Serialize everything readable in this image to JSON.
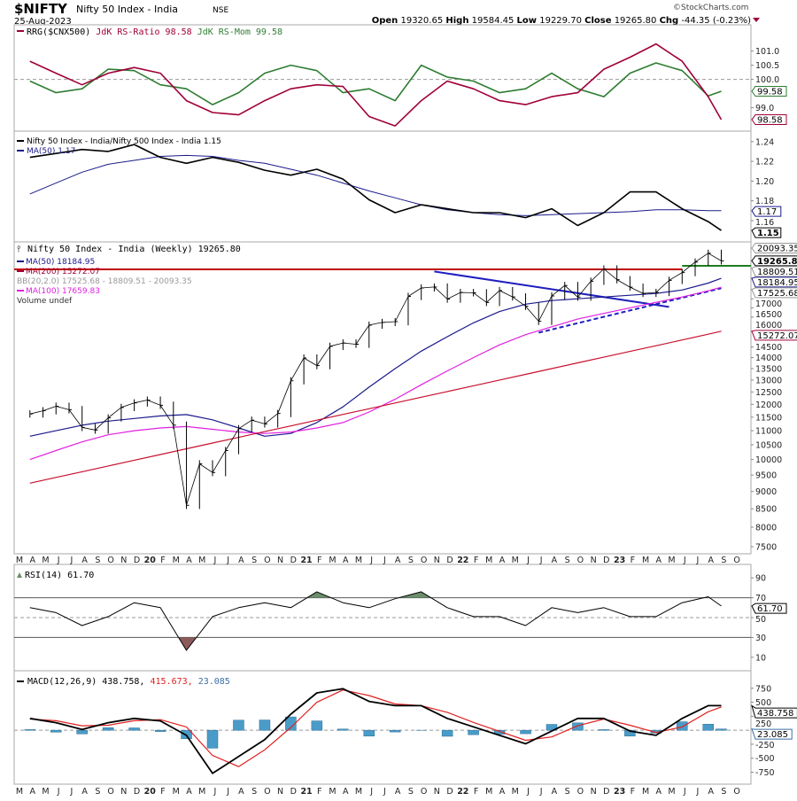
{
  "header": {
    "symbol": "$NIFTY",
    "name": "Nifty 50 Index - India",
    "exchange": "NSE",
    "date": "25-Aug-2023",
    "brand": "©StockCharts.com",
    "open_label": "Open",
    "open": "19320.65",
    "high_label": "High",
    "high": "19584.45",
    "low_label": "Low",
    "low": "19229.70",
    "close_label": "Close",
    "close": "19265.80",
    "chg_label": "Chg",
    "chg": "-44.35 (-0.23%)",
    "chg_icon": "triangle-down-icon",
    "down_color": "#a0003a"
  },
  "chart_data": [
    {
      "panel": "rrg",
      "type": "line",
      "legend": {
        "a": "RRG($CNX500)",
        "b": "JdK RS-Ratio 98.58",
        "c": "JdK RS-Mom 99.58"
      },
      "ylim": [
        98.3,
        101.8
      ],
      "yticks": [
        "101.0",
        "100.5",
        "100.0",
        "99.0"
      ],
      "ytick_values": [
        101.0,
        100.5,
        100.0,
        99.0
      ],
      "reference_line": 100.0,
      "tags": [
        {
          "label": "99.58",
          "value": 99.58,
          "color": "#2e7d32"
        },
        {
          "label": "98.58",
          "value": 98.58,
          "color": "#a0003a"
        }
      ],
      "dates": [
        "2019-03",
        "2019-05",
        "2019-07",
        "2019-09",
        "2019-11",
        "2020-01",
        "2020-03",
        "2020-05",
        "2020-07",
        "2020-09",
        "2020-11",
        "2021-01",
        "2021-03",
        "2021-05",
        "2021-07",
        "2021-09",
        "2021-11",
        "2022-01",
        "2022-03",
        "2022-05",
        "2022-07",
        "2022-09",
        "2022-11",
        "2023-01",
        "2023-03",
        "2023-05",
        "2023-07",
        "2023-08"
      ],
      "series": [
        {
          "name": "JdK RS-Ratio",
          "color": "#a0003a",
          "values": [
            100.64,
            100.22,
            99.81,
            100.22,
            100.42,
            100.22,
            99.25,
            98.83,
            98.75,
            99.25,
            99.67,
            99.81,
            99.75,
            98.69,
            98.36,
            99.25,
            99.94,
            99.67,
            99.25,
            99.11,
            99.39,
            99.53,
            100.36,
            100.78,
            101.25,
            100.64,
            99.39,
            98.58
          ]
        },
        {
          "name": "JdK RS-Mom",
          "color": "#2e7d32",
          "values": [
            99.94,
            99.53,
            99.67,
            100.36,
            100.31,
            99.81,
            99.67,
            99.11,
            99.53,
            100.22,
            100.5,
            100.31,
            99.53,
            99.67,
            99.25,
            100.5,
            100.08,
            99.94,
            99.53,
            99.67,
            100.22,
            99.67,
            99.39,
            100.22,
            100.58,
            100.31,
            99.42,
            99.58
          ]
        }
      ]
    },
    {
      "panel": "ratio",
      "type": "line",
      "legend": {
        "a": "Nifty 50 Index - India/Nifty 500 Index - India 1.15",
        "b": "MA(50) 1.17"
      },
      "ylim": [
        1.142,
        1.247
      ],
      "yticks": [
        "1.24",
        "1.22",
        "1.20",
        "1.18",
        "1.16"
      ],
      "ytick_values": [
        1.24,
        1.22,
        1.2,
        1.18,
        1.16
      ],
      "tags": [
        {
          "label": "1.17",
          "value": 1.17,
          "color": "#1a1a8c"
        },
        {
          "label": "1.15",
          "value": 1.15,
          "color": "#000000",
          "bold": true
        }
      ],
      "dates": [
        "2019-03",
        "2019-05",
        "2019-07",
        "2019-09",
        "2019-11",
        "2020-01",
        "2020-03",
        "2020-05",
        "2020-07",
        "2020-09",
        "2020-11",
        "2021-01",
        "2021-03",
        "2021-05",
        "2021-07",
        "2021-09",
        "2021-11",
        "2022-01",
        "2022-03",
        "2022-05",
        "2022-07",
        "2022-09",
        "2022-11",
        "2023-01",
        "2023-03",
        "2023-05",
        "2023-07",
        "2023-08"
      ],
      "series": [
        {
          "name": "Nifty 50 Index - India/Nifty 500 Index - India",
          "color": "#000000",
          "values": [
            1.224,
            1.228,
            1.232,
            1.23,
            1.237,
            1.224,
            1.218,
            1.224,
            1.219,
            1.211,
            1.206,
            1.212,
            1.202,
            1.181,
            1.168,
            1.176,
            1.172,
            1.168,
            1.168,
            1.163,
            1.172,
            1.155,
            1.168,
            1.189,
            1.189,
            1.172,
            1.159,
            1.15
          ]
        },
        {
          "name": "MA(50)",
          "color": "#1a1a8c",
          "values": [
            1.187,
            1.198,
            1.209,
            1.217,
            1.221,
            1.225,
            1.226,
            1.225,
            1.221,
            1.218,
            1.212,
            1.206,
            1.198,
            1.19,
            1.183,
            1.176,
            1.171,
            1.168,
            1.166,
            1.165,
            1.166,
            1.167,
            1.168,
            1.169,
            1.171,
            1.171,
            1.17,
            1.17
          ]
        }
      ]
    },
    {
      "panel": "price",
      "type": "line",
      "scale": "log",
      "legend": {
        "title": "Nifty 50 Index - India (Weekly) 19265.80",
        "ma50": "MA(50) 18184.95",
        "ma200": "MA(200) 15272.07",
        "bb": "BB(20,2.0) 17525.68 - 18809.51 - 20093.35",
        "ma100": "MA(100) 17659.83",
        "volume": "Volume undef"
      },
      "ylim": [
        7400,
        20600
      ],
      "yticks": [
        "20093.35",
        "19265.80",
        "18809.51",
        "18184.95",
        "17525.68",
        "17000",
        "16500",
        "16000",
        "15272.07",
        "14500",
        "14000",
        "13500",
        "13000",
        "12500",
        "12000",
        "11500",
        "11000",
        "10500",
        "10000",
        "9500",
        "9000",
        "8500",
        "8000",
        "7500"
      ],
      "tags": [
        {
          "label": "20093.35",
          "value": 20093.35,
          "color": "#999999"
        },
        {
          "label": "19265.80",
          "value": 19265.8,
          "color": "#000000",
          "bold": true
        },
        {
          "label": "18809.51",
          "value": 18809.51,
          "color": "#999999"
        },
        {
          "label": "18184.95",
          "value": 18184.95,
          "color": "#1a1a8c"
        },
        {
          "label": "17525.68",
          "value": 17525.68,
          "color": "#999999"
        },
        {
          "label": "15272.07",
          "value": 15272.07,
          "color": "#a0003a"
        }
      ],
      "close_dates": [
        "2019-03",
        "2019-04",
        "2019-05",
        "2019-06",
        "2019-07",
        "2019-08",
        "2019-09",
        "2019-10",
        "2019-11",
        "2019-12",
        "2020-01",
        "2020-02",
        "2020-03",
        "2020-04",
        "2020-05",
        "2020-06",
        "2020-07",
        "2020-08",
        "2020-09",
        "2020-10",
        "2020-11",
        "2020-12",
        "2021-01",
        "2021-02",
        "2021-03",
        "2021-04",
        "2021-05",
        "2021-06",
        "2021-07",
        "2021-08",
        "2021-09",
        "2021-10",
        "2021-11",
        "2021-12",
        "2022-01",
        "2022-02",
        "2022-03",
        "2022-04",
        "2022-05",
        "2022-06",
        "2022-07",
        "2022-08",
        "2022-09",
        "2022-10",
        "2022-11",
        "2022-12",
        "2023-01",
        "2023-02",
        "2023-03",
        "2023-04",
        "2023-05",
        "2023-06",
        "2023-07",
        "2023-08"
      ],
      "close": [
        11624,
        11748,
        11923,
        11789,
        11118,
        11023,
        11474,
        11877,
        12056,
        12168,
        11962,
        11202,
        8598,
        9860,
        9580,
        10302,
        11073,
        11388,
        11248,
        11642,
        12969,
        13982,
        13635,
        14529,
        14691,
        14631,
        15583,
        15722,
        15763,
        17132,
        17618,
        17672,
        16983,
        17354,
        17340,
        16794,
        17465,
        17103,
        16585,
        15780,
        17158,
        17759,
        17094,
        18012,
        18758,
        18105,
        17662,
        17304,
        17360,
        18065,
        18534,
        19189,
        19754,
        19265.8
      ],
      "ma_dates": [
        "2019-03",
        "2019-05",
        "2019-07",
        "2019-09",
        "2019-11",
        "2020-01",
        "2020-03",
        "2020-05",
        "2020-07",
        "2020-09",
        "2020-11",
        "2021-01",
        "2021-03",
        "2021-05",
        "2021-07",
        "2021-09",
        "2021-11",
        "2022-01",
        "2022-03",
        "2022-05",
        "2022-07",
        "2022-09",
        "2022-11",
        "2023-01",
        "2023-03",
        "2023-05",
        "2023-07",
        "2023-08"
      ],
      "series": [
        {
          "name": "MA(50)",
          "color": "#1a1a8c",
          "values": [
            10800,
            11000,
            11200,
            11350,
            11450,
            11550,
            11600,
            11400,
            11100,
            10800,
            10900,
            11300,
            11900,
            12700,
            13500,
            14300,
            15000,
            15700,
            16300,
            16700,
            16900,
            17000,
            17100,
            17200,
            17300,
            17500,
            17900,
            18184.95
          ]
        },
        {
          "name": "MA(100)",
          "color": "#e020e0",
          "values": [
            10000,
            10300,
            10600,
            10850,
            11000,
            11100,
            11150,
            11050,
            10950,
            10900,
            10950,
            11100,
            11300,
            11700,
            12200,
            12800,
            13400,
            14000,
            14600,
            15100,
            15500,
            15900,
            16200,
            16500,
            16800,
            17100,
            17450,
            17659.83
          ]
        },
        {
          "name": "MA(200)",
          "color": "#c8102e",
          "values": [
            9250,
            9427,
            9607,
            9790,
            9977,
            10167,
            10361,
            10559,
            10760,
            10966,
            11175,
            11388,
            11606,
            11827,
            12053,
            12283,
            12517,
            12756,
            13000,
            13248,
            13500,
            13758,
            14020,
            14288,
            14560,
            14838,
            15121,
            15272.07
          ]
        }
      ],
      "annotations": [
        {
          "type": "hline",
          "value": 18730,
          "from": "2019-03",
          "to": "2023-05",
          "color": "#c00000"
        },
        {
          "type": "hline",
          "value": 18950,
          "from": "2023-05",
          "to": "2023-09",
          "color": "#1e7d1e"
        },
        {
          "type": "trendline",
          "style": "solid",
          "from": [
            "2021-10",
            18600
          ],
          "to": [
            "2023-04",
            16550
          ],
          "color": "#1f1fbf"
        },
        {
          "type": "trendline",
          "style": "dashed",
          "from": [
            "2022-06",
            15200
          ],
          "to": [
            "2023-08",
            17600
          ],
          "color": "#1f1fbf"
        }
      ]
    },
    {
      "panel": "rsi",
      "type": "line",
      "legend": "RSI(14) 61.70",
      "ylim": [
        0,
        100
      ],
      "yticks": [
        "90",
        "70",
        "50",
        "30",
        "10"
      ],
      "ytick_values": [
        90,
        70,
        50,
        30,
        10
      ],
      "overbought": 70,
      "oversold": 30,
      "tags": [
        {
          "label": "61.70",
          "value": 61.7,
          "color": "#000000"
        }
      ],
      "dates": [
        "2019-03",
        "2019-05",
        "2019-07",
        "2019-09",
        "2019-11",
        "2020-01",
        "2020-03",
        "2020-05",
        "2020-07",
        "2020-09",
        "2020-11",
        "2021-01",
        "2021-03",
        "2021-05",
        "2021-07",
        "2021-09",
        "2021-11",
        "2022-01",
        "2022-03",
        "2022-05",
        "2022-07",
        "2022-09",
        "2022-11",
        "2023-01",
        "2023-03",
        "2023-05",
        "2023-07",
        "2023-08"
      ],
      "values": [
        60,
        55,
        42,
        51,
        65,
        60,
        17,
        51,
        60,
        65,
        60,
        76,
        65,
        60,
        69,
        76,
        60,
        51,
        51,
        42,
        60,
        55,
        60,
        51,
        51,
        65,
        71,
        61.7
      ]
    },
    {
      "panel": "macd",
      "type": "line",
      "legend": {
        "a": "MACD(12,26,9) 438.758,",
        "b": "415.673,",
        "c": "23.085"
      },
      "ylim": [
        -900,
        1000
      ],
      "yticks": [
        "750",
        "500",
        "250",
        "-250",
        "-500",
        "-750"
      ],
      "ytick_values": [
        750,
        500,
        250,
        -250,
        -500,
        -750
      ],
      "tags": [
        {
          "label": "438.758",
          "value": 438.758,
          "color": "#000000"
        },
        {
          "label": "23.085",
          "value": 23.085,
          "color": "#3a6ea5"
        }
      ],
      "dates": [
        "2019-03",
        "2019-05",
        "2019-07",
        "2019-09",
        "2019-11",
        "2020-01",
        "2020-03",
        "2020-05",
        "2020-07",
        "2020-09",
        "2020-11",
        "2021-01",
        "2021-03",
        "2021-05",
        "2021-07",
        "2021-09",
        "2021-11",
        "2022-01",
        "2022-03",
        "2022-05",
        "2022-07",
        "2022-09",
        "2022-11",
        "2023-01",
        "2023-03",
        "2023-05",
        "2023-07",
        "2023-08"
      ],
      "series": [
        {
          "name": "MACD",
          "color": "#000000",
          "values": [
            212,
            136,
            15,
            136,
            212,
            167,
            -91,
            -770,
            -470,
            -167,
            288,
            667,
            742,
            515,
            439,
            439,
            212,
            61,
            -91,
            -242,
            -15,
            212,
            212,
            -15,
            -91,
            212,
            439,
            438.758
          ]
        },
        {
          "name": "Signal",
          "color": "#e02020",
          "values": [
            200,
            170,
            80,
            90,
            170,
            190,
            60,
            -450,
            -650,
            -350,
            50,
            500,
            720,
            620,
            470,
            440,
            320,
            140,
            -20,
            -180,
            -120,
            80,
            200,
            90,
            -40,
            60,
            330,
            415.673
          ]
        },
        {
          "name": "Histogram",
          "color": "#4a9cc8",
          "values": [
            12,
            -34,
            -65,
            46,
            42,
            -23,
            -151,
            -320,
            180,
            183,
            238,
            167,
            22,
            -105,
            -31,
            -1,
            -108,
            -79,
            -71,
            -62,
            105,
            132,
            12,
            -105,
            -51,
            152,
            109,
            23.085
          ]
        }
      ]
    }
  ],
  "x_axis": {
    "labels": [
      "M",
      "A",
      "M",
      "J",
      "J",
      "A",
      "S",
      "O",
      "N",
      "D",
      "20",
      "F",
      "M",
      "A",
      "M",
      "J",
      "J",
      "A",
      "S",
      "O",
      "N",
      "D",
      "21",
      "F",
      "M",
      "A",
      "M",
      "J",
      "J",
      "A",
      "S",
      "O",
      "N",
      "D",
      "22",
      "F",
      "M",
      "A",
      "M",
      "J",
      "J",
      "A",
      "S",
      "O",
      "N",
      "D",
      "23",
      "F",
      "M",
      "A",
      "M",
      "J",
      "J",
      "A",
      "S",
      "O"
    ],
    "bold": [
      "20",
      "21",
      "22",
      "23"
    ]
  }
}
